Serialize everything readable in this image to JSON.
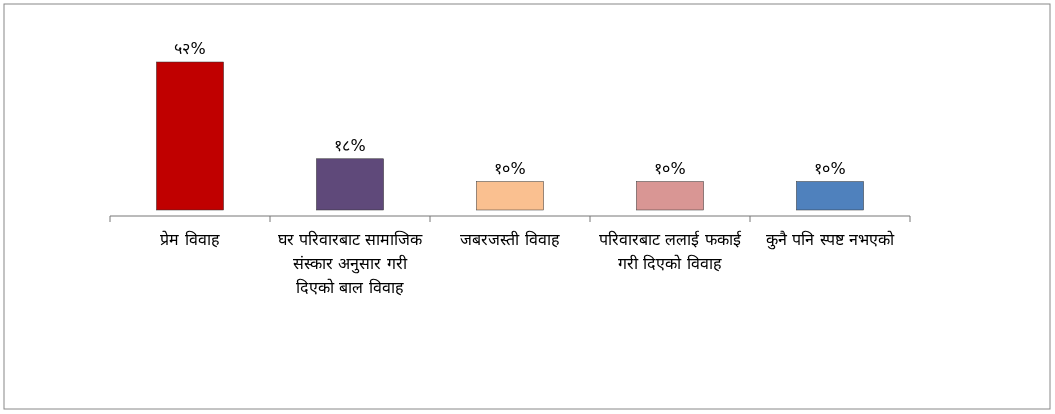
{
  "chart_data": {
    "type": "bar",
    "categories": [
      "प्रेम विवाह",
      "घर परिवारबाट सामाजिक संस्कार अनुसार गरी दिएको बाल विवाह",
      "जबरजस्ती विवाह",
      "परिवारबाट ललाई फकाई गरी दिएको विवाह",
      "कुनै पनि स्पष्ट नभएको"
    ],
    "values": [
      52,
      18,
      10,
      10,
      10
    ],
    "value_labels": [
      "५२%",
      "१८%",
      "१०%",
      "१०%",
      "१०%"
    ],
    "colors": [
      "#c00000",
      "#5f497a",
      "#fac090",
      "#d99694",
      "#4f81bd"
    ]
  }
}
